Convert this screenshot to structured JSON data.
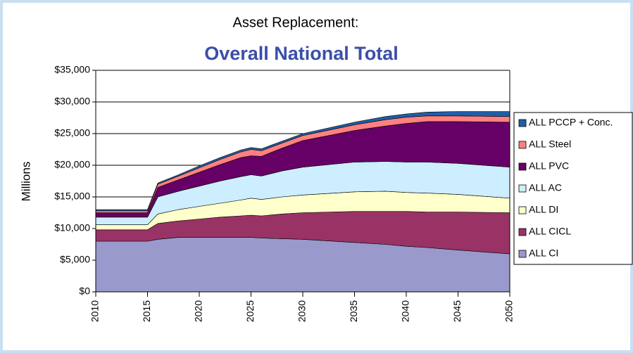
{
  "chart_data": {
    "type": "stacked-area",
    "title": "Asset Replacement:",
    "subtitle": "Overall National Total",
    "y_label": "Millions",
    "x": [
      2010,
      2015,
      2016,
      2018,
      2020,
      2022,
      2024,
      2025,
      2026,
      2028,
      2030,
      2035,
      2038,
      2040,
      2042,
      2045,
      2050
    ],
    "series": [
      {
        "name": "ALL CI",
        "color": "#9999cc",
        "values": [
          8000,
          8000,
          8300,
          8600,
          8600,
          8600,
          8600,
          8600,
          8500,
          8400,
          8300,
          7800,
          7500,
          7200,
          7000,
          6600,
          6000
        ]
      },
      {
        "name": "ALL CICL",
        "color": "#993366",
        "values": [
          1800,
          1800,
          2500,
          2600,
          2900,
          3200,
          3400,
          3500,
          3500,
          3900,
          4200,
          4900,
          5200,
          5500,
          5600,
          6000,
          6500
        ]
      },
      {
        "name": "ALL DI",
        "color": "#ffffcc",
        "values": [
          800,
          800,
          1500,
          1800,
          2000,
          2200,
          2500,
          2700,
          2600,
          2700,
          2800,
          3100,
          3200,
          3000,
          3000,
          2800,
          2300
        ]
      },
      {
        "name": "ALL AC",
        "color": "#cceeff",
        "values": [
          1200,
          1200,
          2700,
          2900,
          3200,
          3500,
          3700,
          3700,
          3700,
          4100,
          4400,
          4700,
          4700,
          4800,
          4900,
          4900,
          4900
        ]
      },
      {
        "name": "ALL PVC",
        "color": "#660066",
        "values": [
          700,
          700,
          1500,
          1800,
          2200,
          2600,
          3000,
          3000,
          3100,
          3600,
          4200,
          5000,
          5600,
          6100,
          6400,
          6600,
          7100
        ]
      },
      {
        "name": "ALL Steel",
        "color": "#ff8080",
        "values": [
          300,
          300,
          500,
          600,
          700,
          800,
          900,
          1000,
          900,
          800,
          800,
          900,
          1000,
          1000,
          900,
          900,
          900
        ]
      },
      {
        "name": "ALL PCCP + Conc.",
        "color": "#1f5fa8",
        "values": [
          200,
          200,
          200,
          200,
          300,
          300,
          300,
          300,
          300,
          300,
          300,
          400,
          500,
          500,
          600,
          700,
          800
        ]
      }
    ],
    "xlim": [
      2010,
      2050
    ],
    "xticks": [
      2010,
      2015,
      2020,
      2025,
      2030,
      2035,
      2040,
      2045,
      2050
    ],
    "ylim": [
      0,
      35000
    ],
    "yticks": [
      {
        "value": 0,
        "label": "$0"
      },
      {
        "value": 5000,
        "label": "$5,000"
      },
      {
        "value": 10000,
        "label": "$10,000"
      },
      {
        "value": 15000,
        "label": "$15,000"
      },
      {
        "value": 20000,
        "label": "$20,000"
      },
      {
        "value": 25000,
        "label": "$25,000"
      },
      {
        "value": 30000,
        "label": "$30,000"
      },
      {
        "value": 35000,
        "label": "$35,000"
      }
    ],
    "grid": true,
    "legend": "right"
  }
}
